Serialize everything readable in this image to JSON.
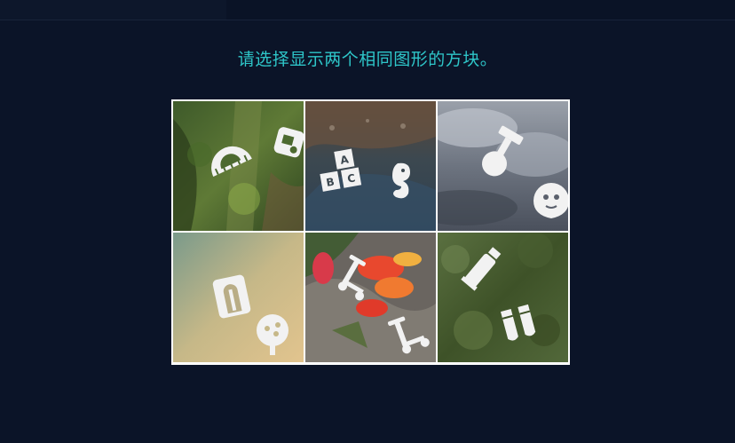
{
  "captcha": {
    "instruction": "请选择显示两个相同图形的方块。",
    "tiles": [
      {
        "icons": [
          "ruler-icon",
          "tea-set-icon"
        ],
        "background": "moss-wall"
      },
      {
        "icons": [
          "abc-blocks-icon",
          "seahorse-icon"
        ],
        "background": "wet-rock"
      },
      {
        "icons": [
          "stamp-icon",
          "baby-face-icon"
        ],
        "background": "cloudy-sky"
      },
      {
        "icons": [
          "pencil-sharpener-icon",
          "tree-icon"
        ],
        "background": "sandy-gradient"
      },
      {
        "icons": [
          "scooter-icon",
          "scooter-icon"
        ],
        "background": "red-flowers"
      },
      {
        "icons": [
          "paint-tube-icon",
          "gloves-icon"
        ],
        "background": "green-foliage"
      }
    ]
  }
}
